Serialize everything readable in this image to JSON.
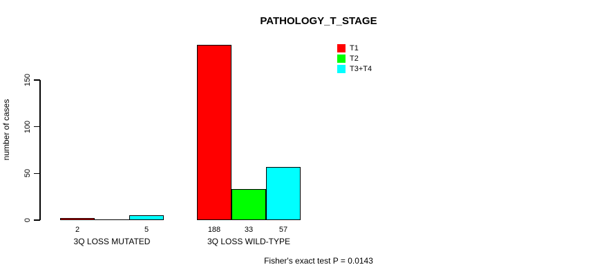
{
  "chart_data": {
    "type": "bar",
    "title": "PATHOLOGY_T_STAGE",
    "ylabel": "number of cases",
    "xlabel": "",
    "categories": [
      "3Q LOSS MUTATED",
      "3Q LOSS WILD-TYPE"
    ],
    "series": [
      {
        "name": "T1",
        "color": "#FF0000",
        "values": [
          2,
          188
        ]
      },
      {
        "name": "T2",
        "color": "#00FF00",
        "values": [
          0,
          33
        ]
      },
      {
        "name": "T3+T4",
        "color": "#00FFFF",
        "values": [
          5,
          57
        ]
      }
    ],
    "bar_labels": [
      [
        "2",
        "",
        "5"
      ],
      [
        "188",
        "33",
        "57"
      ]
    ],
    "yticks": [
      0,
      50,
      100,
      150
    ],
    "ylim": [
      0,
      190
    ],
    "grid": false,
    "legend_position": "top-right",
    "annotation": "Fisher's exact test P = 0.0143",
    "colors": {
      "axis": "#000000",
      "text": "#000000",
      "background": "#FFFFFF"
    }
  }
}
